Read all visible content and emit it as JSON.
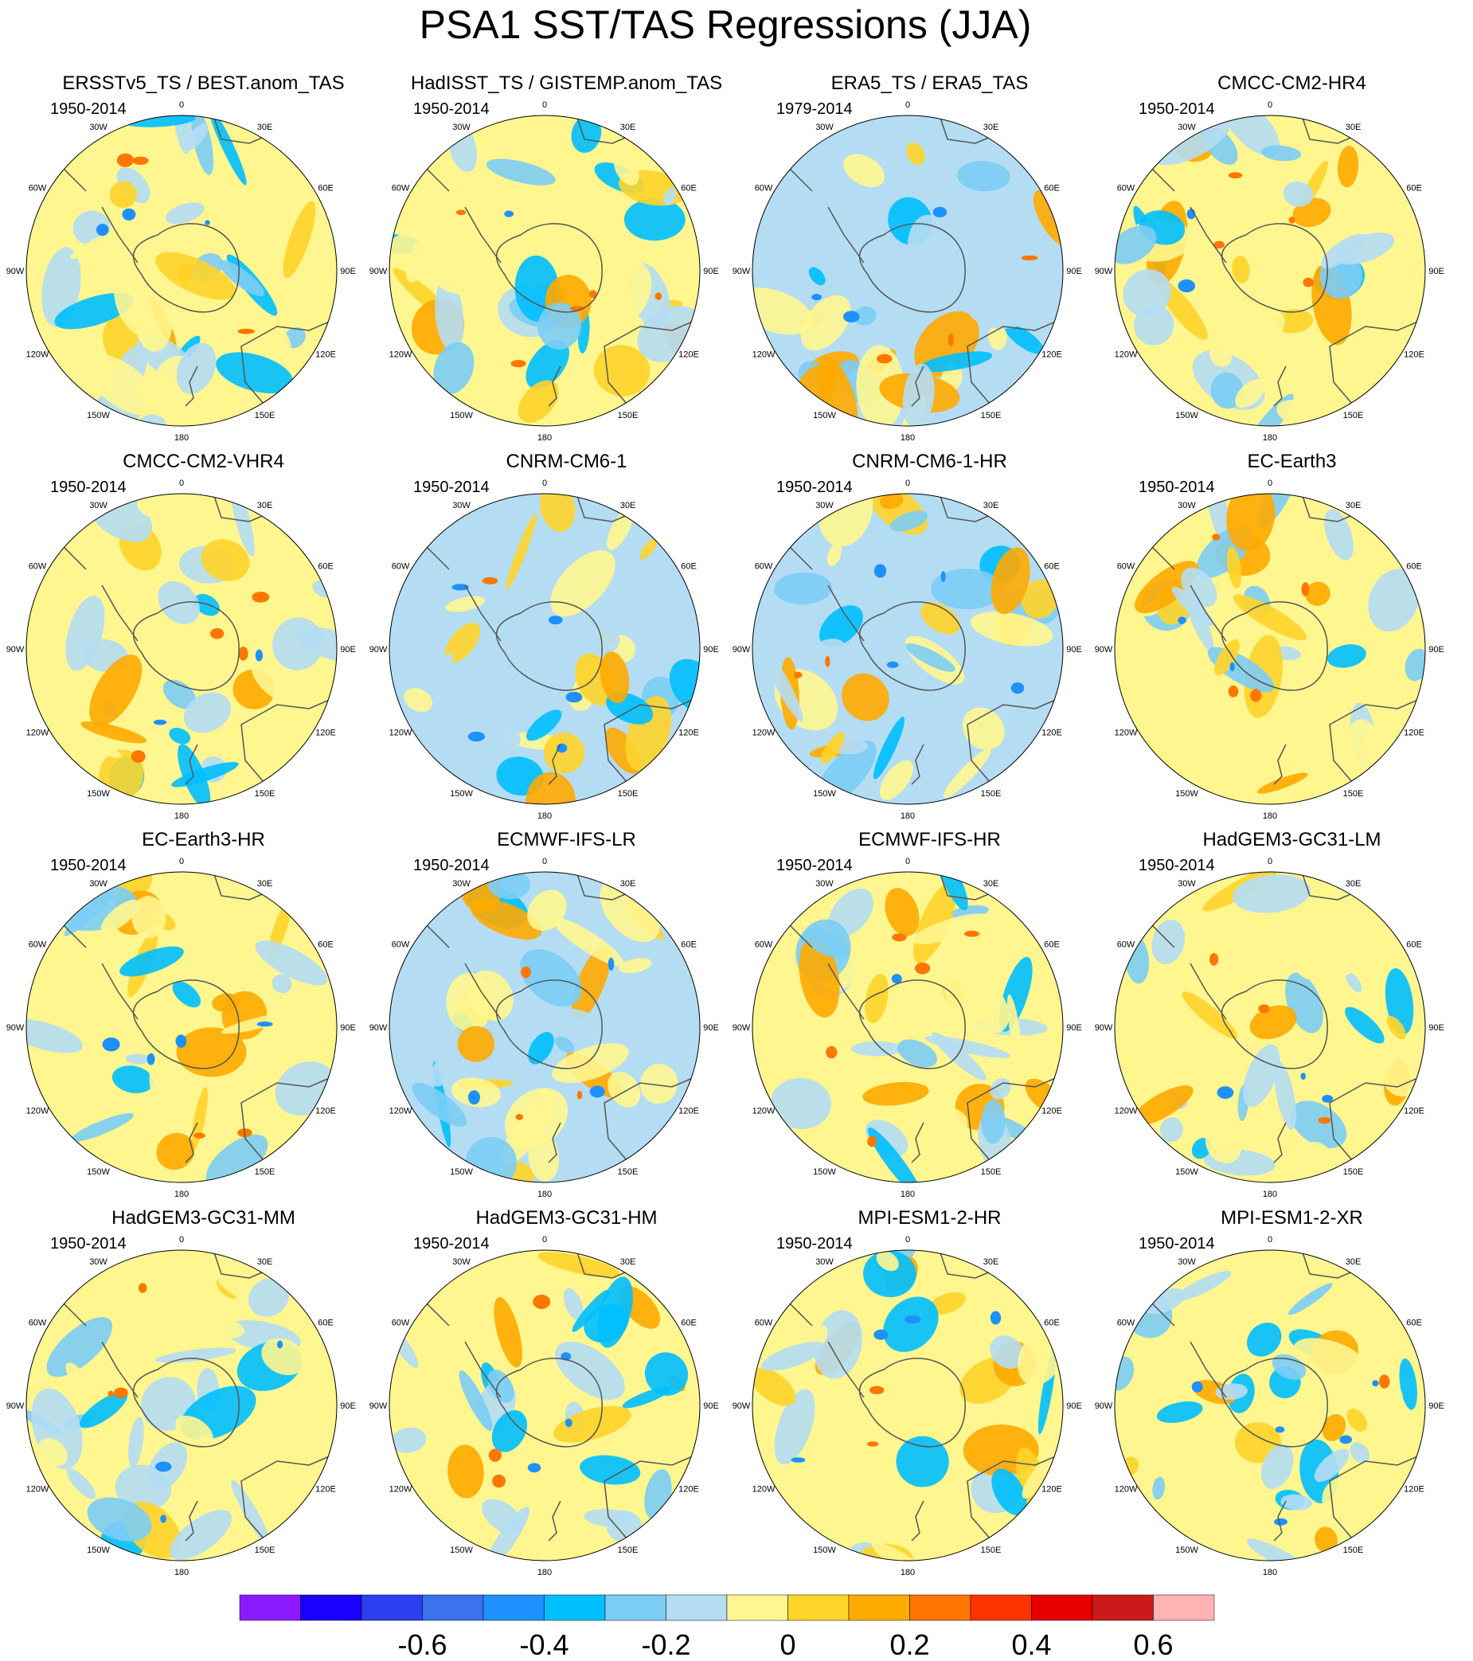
{
  "title": "PSA1 SST/TAS Regressions (JJA)",
  "panels": [
    {
      "title": "ERSSTv5_TS / BEST.anom_TAS",
      "period": "1950-2014",
      "seed": 11,
      "bg": "#fff68f"
    },
    {
      "title": "HadISST_TS / GISTEMP.anom_TAS",
      "period": "1950-2014",
      "seed": 23,
      "bg": "#fff68f"
    },
    {
      "title": "ERA5_TS / ERA5_TAS",
      "period": "1979-2014",
      "seed": 37,
      "bg": "#b4ddf3"
    },
    {
      "title": "CMCC-CM2-HR4",
      "period": "1950-2014",
      "seed": 41,
      "bg": "#fff68f"
    },
    {
      "title": "CMCC-CM2-VHR4",
      "period": "1950-2014",
      "seed": 53,
      "bg": "#fff68f"
    },
    {
      "title": "CNRM-CM6-1",
      "period": "1950-2014",
      "seed": 67,
      "bg": "#b4ddf3"
    },
    {
      "title": "CNRM-CM6-1-HR",
      "period": "1950-2014",
      "seed": 71,
      "bg": "#b4ddf3"
    },
    {
      "title": "EC-Earth3",
      "period": "1950-2014",
      "seed": 83,
      "bg": "#fff68f"
    },
    {
      "title": "EC-Earth3-HR",
      "period": "1950-2014",
      "seed": 97,
      "bg": "#fff68f"
    },
    {
      "title": "ECMWF-IFS-LR",
      "period": "1950-2014",
      "seed": 101,
      "bg": "#b4ddf3"
    },
    {
      "title": "ECMWF-IFS-HR",
      "period": "1950-2014",
      "seed": 113,
      "bg": "#fff68f"
    },
    {
      "title": "HadGEM3-GC31-LM",
      "period": "1950-2014",
      "seed": 127,
      "bg": "#fff68f"
    },
    {
      "title": "HadGEM3-GC31-MM",
      "period": "1950-2014",
      "seed": 131,
      "bg": "#fff68f"
    },
    {
      "title": "HadGEM3-GC31-HM",
      "period": "1950-2014",
      "seed": 149,
      "bg": "#fff68f"
    },
    {
      "title": "MPI-ESM1-2-HR",
      "period": "1950-2014",
      "seed": 151,
      "bg": "#fff68f"
    },
    {
      "title": "MPI-ESM1-2-XR",
      "period": "1950-2014",
      "seed": 163,
      "bg": "#fff68f"
    }
  ],
  "longitude_labels": {
    "top": "0",
    "bottom": "180",
    "left": [
      "30W",
      "60W",
      "90W",
      "120W",
      "150W"
    ],
    "right": [
      "30E",
      "60E",
      "90E",
      "120E",
      "150E"
    ]
  },
  "colorbar": {
    "colors": [
      "#8c1aff",
      "#1a00ff",
      "#2e3ff0",
      "#3a72f0",
      "#1e90ff",
      "#00bfff",
      "#7ccdf5",
      "#b4ddf3",
      "#fff68f",
      "#ffd42a",
      "#ffaa00",
      "#ff7700",
      "#ff3300",
      "#e60000",
      "#cc1a1a",
      "#ffb3b3"
    ],
    "tick_labels": [
      "-0.6",
      "-0.4",
      "-0.2",
      "0",
      "0.2",
      "0.4",
      "0.6"
    ]
  }
}
